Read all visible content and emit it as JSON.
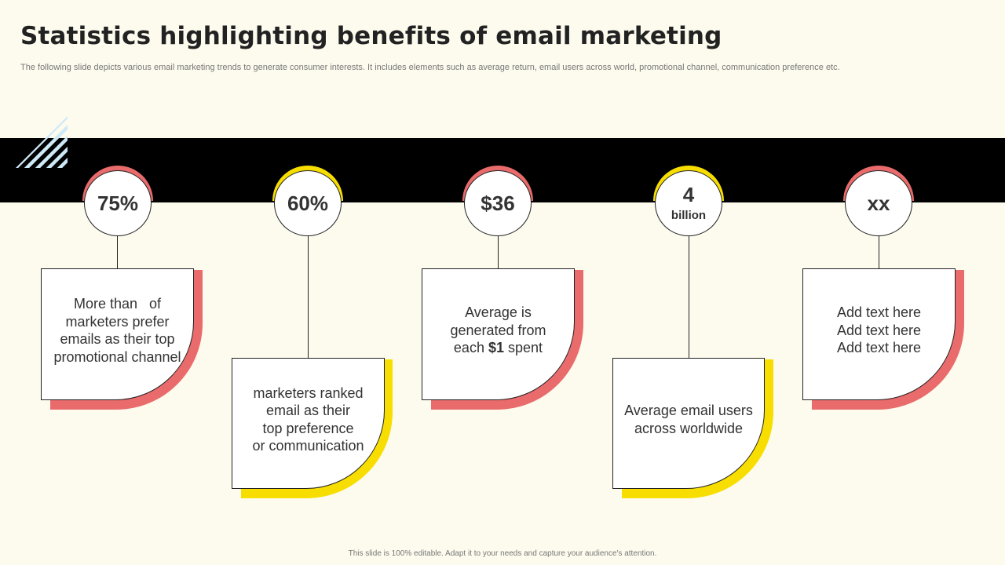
{
  "slide": {
    "title": "Statistics highlighting benefits of email marketing",
    "subtitle": "The following slide depicts various email marketing trends to generate consumer interests. It includes elements such as average return, email users across world, promotional channel, communication preference etc.",
    "footer": "This slide is 100% editable.  Adapt it to your needs and capture your audience's attention."
  },
  "colors": {
    "background": "#fdfbee",
    "band": "#000000",
    "red_accent": "#e96b6b",
    "yellow_accent": "#f7de00",
    "stripe": "#cfe9f7"
  },
  "stats": [
    {
      "value": "75%",
      "unit": "",
      "accent": "red",
      "text_lines": [
        "More than   of",
        "marketers prefer",
        "emails as their top",
        "promotional channel"
      ]
    },
    {
      "value": "60%",
      "unit": "",
      "accent": "yellow",
      "text_lines": [
        "marketers ranked",
        "email as their",
        "top preference",
        "or communication"
      ]
    },
    {
      "value": "$36",
      "unit": "",
      "accent": "red",
      "text_lines": [
        "Average is",
        "generated from"
      ],
      "text_last": {
        "prefix": "each ",
        "bold": "$1",
        "suffix": " spent"
      }
    },
    {
      "value": "4",
      "unit": "billion",
      "accent": "yellow",
      "text_lines": [
        "Average email users",
        "across worldwide"
      ]
    },
    {
      "value": "xx",
      "unit": "",
      "accent": "red",
      "text_lines": [
        "Add text here",
        "Add text here",
        "Add text here"
      ]
    }
  ]
}
